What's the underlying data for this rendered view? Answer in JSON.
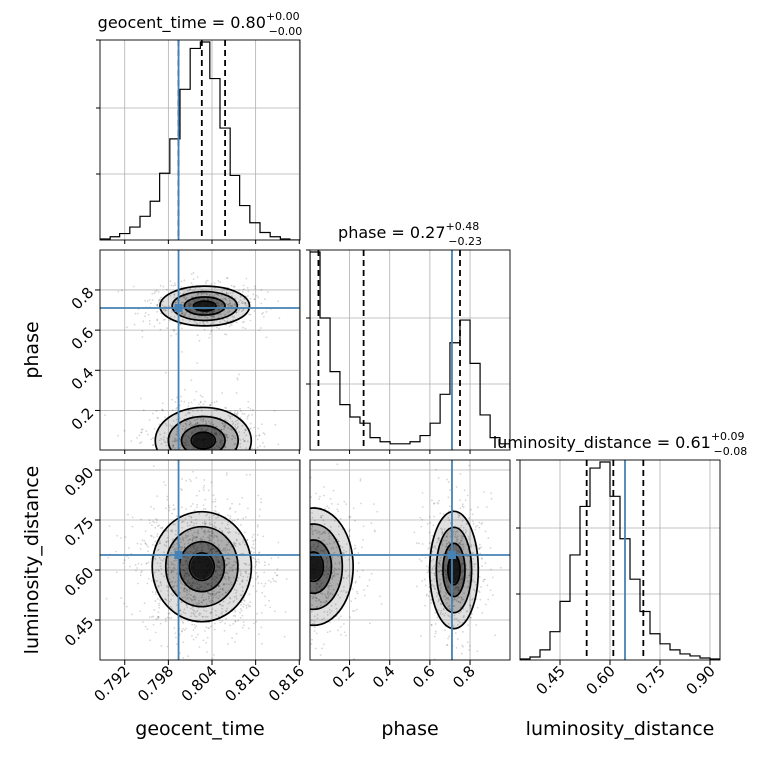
{
  "chart_data": {
    "type": "corner",
    "parameters": [
      "geocent_time",
      "phase",
      "luminosity_distance"
    ],
    "titles": [
      {
        "param": "geocent_time",
        "prefix": "geocent_time = ",
        "median": "0.80",
        "plus": "+0.00",
        "minus": "−0.00"
      },
      {
        "param": "phase",
        "prefix": "phase = ",
        "median": "0.27",
        "plus": "+0.48",
        "minus": "−0.23"
      },
      {
        "param": "luminosity_distance",
        "prefix": "luminosity_distance = ",
        "median": "0.61",
        "plus": "+0.09",
        "minus": "−0.08"
      }
    ],
    "axis_labels": {
      "x": [
        "geocent_time",
        "phase",
        "luminosity_distance"
      ],
      "y": [
        "phase",
        "luminosity_distance"
      ]
    },
    "ranges": {
      "geocent_time": [
        0.7886,
        0.8161
      ],
      "phase": [
        0.003,
        0.999
      ],
      "luminosity_distance": [
        0.33,
        0.93
      ]
    },
    "ticks": {
      "geocent_time": [
        "0.792",
        "0.798",
        "0.804",
        "0.810",
        "0.816"
      ],
      "phase": [
        "0.2",
        "0.4",
        "0.6",
        "0.8"
      ],
      "luminosity_distance": [
        "0.45",
        "0.60",
        "0.75",
        "0.90"
      ]
    },
    "truths": {
      "geocent_time": 0.7994,
      "phase": 0.71,
      "luminosity_distance": 0.645
    },
    "quantiles": {
      "geocent_time": [
        0.7994,
        0.8026,
        0.8058
      ],
      "phase": [
        0.045,
        0.27,
        0.75
      ],
      "luminosity_distance": [
        0.53,
        0.61,
        0.7
      ]
    },
    "marginals": {
      "geocent_time": {
        "edges": [
          0.7886,
          0.79,
          0.7913,
          0.7927,
          0.7941,
          0.7955,
          0.7968,
          0.7982,
          0.7996,
          0.801,
          0.8024,
          0.8037,
          0.8051,
          0.8065,
          0.8078,
          0.8092,
          0.8106,
          0.812,
          0.8134,
          0.8147,
          0.8161
        ],
        "counts": [
          0.5,
          1.5,
          3,
          6,
          11,
          18,
          31,
          47,
          70,
          89,
          92,
          75,
          52,
          30,
          16,
          8,
          3.5,
          1.5,
          0.5,
          0
        ]
      },
      "phase": {
        "edges": [
          0.003,
          0.053,
          0.103,
          0.152,
          0.202,
          0.252,
          0.302,
          0.352,
          0.402,
          0.451,
          0.501,
          0.551,
          0.601,
          0.651,
          0.7,
          0.75,
          0.8,
          0.85,
          0.9,
          0.949,
          0.999
        ],
        "counts": [
          96,
          64,
          38,
          22,
          16,
          13,
          6,
          4,
          3,
          3,
          4,
          7,
          13,
          27,
          52,
          63,
          42,
          17,
          6,
          3
        ]
      },
      "luminosity_distance": {
        "edges": [
          0.33,
          0.36,
          0.39,
          0.42,
          0.45,
          0.48,
          0.51,
          0.54,
          0.57,
          0.6,
          0.63,
          0.66,
          0.69,
          0.72,
          0.75,
          0.78,
          0.81,
          0.84,
          0.87,
          0.9,
          0.93
        ],
        "counts": [
          0.5,
          1.5,
          5,
          14,
          29,
          52,
          76,
          95,
          98,
          81,
          60,
          40,
          24,
          13,
          8,
          5,
          3,
          2,
          1,
          0.5
        ]
      }
    },
    "pairs": [
      {
        "x": "geocent_time",
        "y": "phase"
      },
      {
        "x": "geocent_time",
        "y": "luminosity_distance"
      },
      {
        "x": "phase",
        "y": "luminosity_distance"
      }
    ]
  }
}
